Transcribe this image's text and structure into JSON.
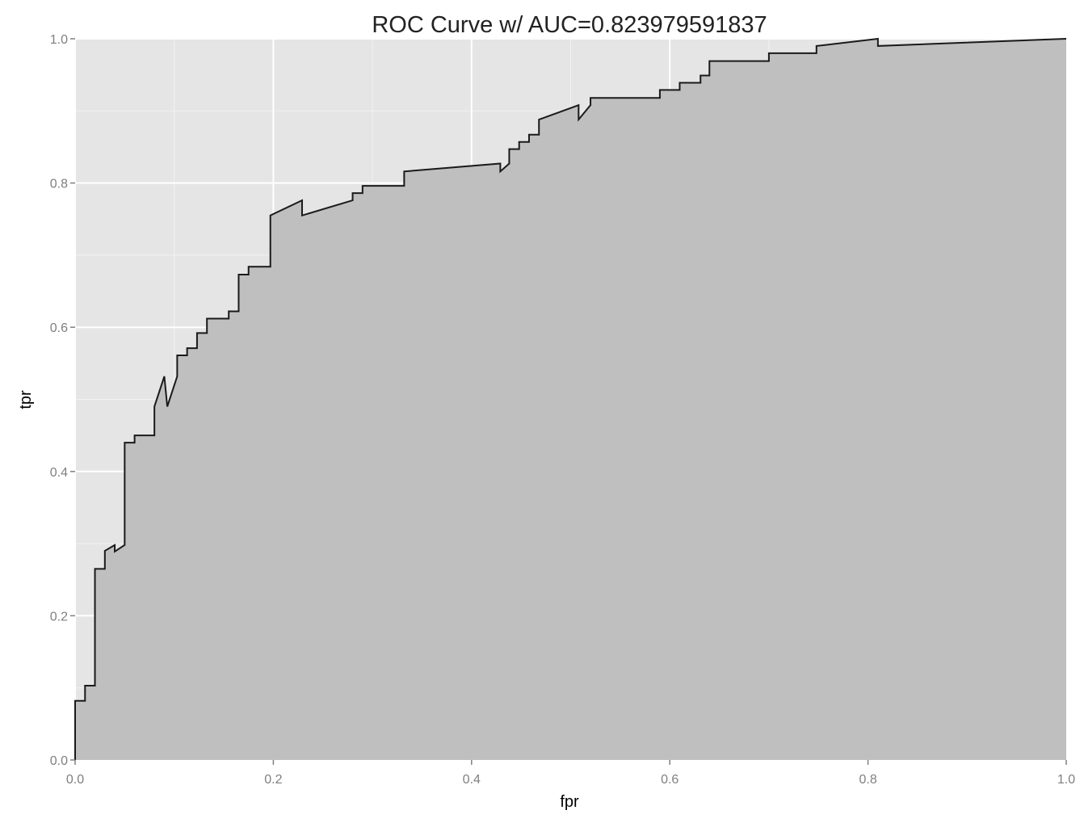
{
  "chart_data": {
    "type": "area",
    "title": "ROC Curve w/ AUC=0.823979591837",
    "xlabel": "fpr",
    "ylabel": "tpr",
    "xlim": [
      0,
      1
    ],
    "ylim": [
      0,
      1
    ],
    "x_ticks": [
      "0.0",
      "0.2",
      "0.4",
      "0.6",
      "0.8",
      "1.0"
    ],
    "y_ticks": [
      "0.0",
      "0.2",
      "0.4",
      "0.6",
      "0.8",
      "1.0"
    ],
    "grid": true,
    "legend": "none",
    "colors": {
      "panel_background": "#e5e5e5",
      "grid_major": "#ffffff",
      "grid_minor": "#f2f2f2",
      "area_fill": "#bfbfbf",
      "line": "#1a1a1a",
      "tick_mark": "#7f7f7f"
    },
    "series": [
      {
        "x": [
          0.0,
          0.0,
          0.01,
          0.01,
          0.02,
          0.02,
          0.03,
          0.03,
          0.04,
          0.04,
          0.05,
          0.05,
          0.06,
          0.06,
          0.08,
          0.08,
          0.09,
          0.093,
          0.103,
          0.103,
          0.113,
          0.113,
          0.123,
          0.123,
          0.133,
          0.133,
          0.155,
          0.155,
          0.165,
          0.165,
          0.175,
          0.175,
          0.197,
          0.197,
          0.229,
          0.229,
          0.28,
          0.28,
          0.29,
          0.29,
          0.332,
          0.332,
          0.429,
          0.429,
          0.438,
          0.438,
          0.448,
          0.448,
          0.458,
          0.458,
          0.468,
          0.468,
          0.508,
          0.508,
          0.52,
          0.52,
          0.59,
          0.59,
          0.61,
          0.61,
          0.631,
          0.631,
          0.64,
          0.64,
          0.7,
          0.7,
          0.748,
          0.748,
          0.81,
          0.81,
          1.0
        ],
        "y": [
          0.0,
          0.082,
          0.082,
          0.103,
          0.103,
          0.265,
          0.265,
          0.29,
          0.298,
          0.289,
          0.298,
          0.44,
          0.44,
          0.45,
          0.45,
          0.49,
          0.532,
          0.49,
          0.532,
          0.561,
          0.561,
          0.571,
          0.571,
          0.592,
          0.592,
          0.612,
          0.612,
          0.622,
          0.622,
          0.673,
          0.673,
          0.684,
          0.684,
          0.755,
          0.776,
          0.755,
          0.776,
          0.786,
          0.786,
          0.796,
          0.796,
          0.816,
          0.827,
          0.816,
          0.827,
          0.847,
          0.847,
          0.857,
          0.857,
          0.867,
          0.867,
          0.888,
          0.908,
          0.888,
          0.908,
          0.918,
          0.918,
          0.929,
          0.929,
          0.939,
          0.939,
          0.949,
          0.949,
          0.969,
          0.969,
          0.98,
          0.98,
          0.99,
          1.0,
          0.99,
          1.0
        ]
      }
    ]
  }
}
